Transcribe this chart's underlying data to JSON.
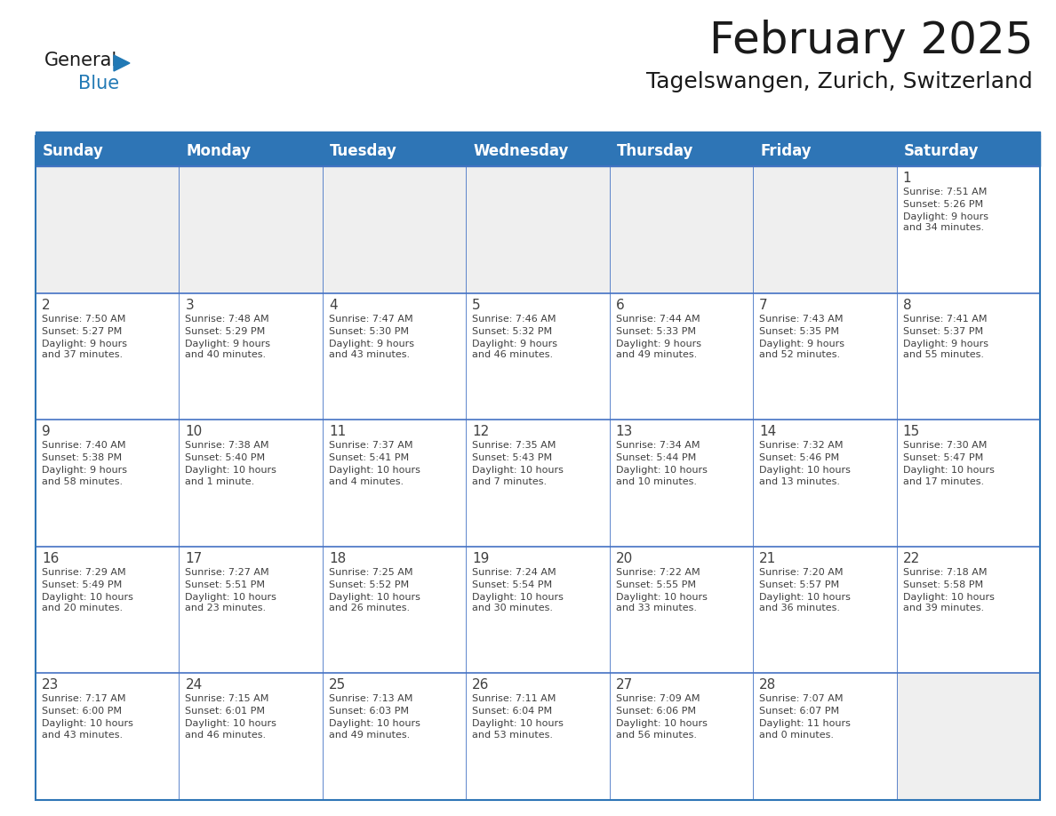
{
  "title": "February 2025",
  "subtitle": "Tagelswangen, Zurich, Switzerland",
  "header_bg": "#2E75B6",
  "header_text_color": "#FFFFFF",
  "cell_bg_gray": "#EFEFEF",
  "cell_bg_white": "#FFFFFF",
  "border_color": "#2E75B6",
  "separator_color": "#4472C4",
  "text_color": "#404040",
  "days_of_week": [
    "Sunday",
    "Monday",
    "Tuesday",
    "Wednesday",
    "Thursday",
    "Friday",
    "Saturday"
  ],
  "calendar_data": [
    [
      {
        "day": null,
        "sunrise": null,
        "sunset": null,
        "daylight": null
      },
      {
        "day": null,
        "sunrise": null,
        "sunset": null,
        "daylight": null
      },
      {
        "day": null,
        "sunrise": null,
        "sunset": null,
        "daylight": null
      },
      {
        "day": null,
        "sunrise": null,
        "sunset": null,
        "daylight": null
      },
      {
        "day": null,
        "sunrise": null,
        "sunset": null,
        "daylight": null
      },
      {
        "day": null,
        "sunrise": null,
        "sunset": null,
        "daylight": null
      },
      {
        "day": 1,
        "sunrise": "7:51 AM",
        "sunset": "5:26 PM",
        "daylight": "9 hours\nand 34 minutes."
      }
    ],
    [
      {
        "day": 2,
        "sunrise": "7:50 AM",
        "sunset": "5:27 PM",
        "daylight": "9 hours\nand 37 minutes."
      },
      {
        "day": 3,
        "sunrise": "7:48 AM",
        "sunset": "5:29 PM",
        "daylight": "9 hours\nand 40 minutes."
      },
      {
        "day": 4,
        "sunrise": "7:47 AM",
        "sunset": "5:30 PM",
        "daylight": "9 hours\nand 43 minutes."
      },
      {
        "day": 5,
        "sunrise": "7:46 AM",
        "sunset": "5:32 PM",
        "daylight": "9 hours\nand 46 minutes."
      },
      {
        "day": 6,
        "sunrise": "7:44 AM",
        "sunset": "5:33 PM",
        "daylight": "9 hours\nand 49 minutes."
      },
      {
        "day": 7,
        "sunrise": "7:43 AM",
        "sunset": "5:35 PM",
        "daylight": "9 hours\nand 52 minutes."
      },
      {
        "day": 8,
        "sunrise": "7:41 AM",
        "sunset": "5:37 PM",
        "daylight": "9 hours\nand 55 minutes."
      }
    ],
    [
      {
        "day": 9,
        "sunrise": "7:40 AM",
        "sunset": "5:38 PM",
        "daylight": "9 hours\nand 58 minutes."
      },
      {
        "day": 10,
        "sunrise": "7:38 AM",
        "sunset": "5:40 PM",
        "daylight": "10 hours\nand 1 minute."
      },
      {
        "day": 11,
        "sunrise": "7:37 AM",
        "sunset": "5:41 PM",
        "daylight": "10 hours\nand 4 minutes."
      },
      {
        "day": 12,
        "sunrise": "7:35 AM",
        "sunset": "5:43 PM",
        "daylight": "10 hours\nand 7 minutes."
      },
      {
        "day": 13,
        "sunrise": "7:34 AM",
        "sunset": "5:44 PM",
        "daylight": "10 hours\nand 10 minutes."
      },
      {
        "day": 14,
        "sunrise": "7:32 AM",
        "sunset": "5:46 PM",
        "daylight": "10 hours\nand 13 minutes."
      },
      {
        "day": 15,
        "sunrise": "7:30 AM",
        "sunset": "5:47 PM",
        "daylight": "10 hours\nand 17 minutes."
      }
    ],
    [
      {
        "day": 16,
        "sunrise": "7:29 AM",
        "sunset": "5:49 PM",
        "daylight": "10 hours\nand 20 minutes."
      },
      {
        "day": 17,
        "sunrise": "7:27 AM",
        "sunset": "5:51 PM",
        "daylight": "10 hours\nand 23 minutes."
      },
      {
        "day": 18,
        "sunrise": "7:25 AM",
        "sunset": "5:52 PM",
        "daylight": "10 hours\nand 26 minutes."
      },
      {
        "day": 19,
        "sunrise": "7:24 AM",
        "sunset": "5:54 PM",
        "daylight": "10 hours\nand 30 minutes."
      },
      {
        "day": 20,
        "sunrise": "7:22 AM",
        "sunset": "5:55 PM",
        "daylight": "10 hours\nand 33 minutes."
      },
      {
        "day": 21,
        "sunrise": "7:20 AM",
        "sunset": "5:57 PM",
        "daylight": "10 hours\nand 36 minutes."
      },
      {
        "day": 22,
        "sunrise": "7:18 AM",
        "sunset": "5:58 PM",
        "daylight": "10 hours\nand 39 minutes."
      }
    ],
    [
      {
        "day": 23,
        "sunrise": "7:17 AM",
        "sunset": "6:00 PM",
        "daylight": "10 hours\nand 43 minutes."
      },
      {
        "day": 24,
        "sunrise": "7:15 AM",
        "sunset": "6:01 PM",
        "daylight": "10 hours\nand 46 minutes."
      },
      {
        "day": 25,
        "sunrise": "7:13 AM",
        "sunset": "6:03 PM",
        "daylight": "10 hours\nand 49 minutes."
      },
      {
        "day": 26,
        "sunrise": "7:11 AM",
        "sunset": "6:04 PM",
        "daylight": "10 hours\nand 53 minutes."
      },
      {
        "day": 27,
        "sunrise": "7:09 AM",
        "sunset": "6:06 PM",
        "daylight": "10 hours\nand 56 minutes."
      },
      {
        "day": 28,
        "sunrise": "7:07 AM",
        "sunset": "6:07 PM",
        "daylight": "11 hours\nand 0 minutes."
      },
      {
        "day": null,
        "sunrise": null,
        "sunset": null,
        "daylight": null
      }
    ]
  ],
  "logo_general_color": "#1a1a1a",
  "logo_blue_color": "#2179B5",
  "title_fontsize": 36,
  "subtitle_fontsize": 18,
  "day_header_fontsize": 12,
  "day_num_fontsize": 11,
  "cell_text_fontsize": 8
}
